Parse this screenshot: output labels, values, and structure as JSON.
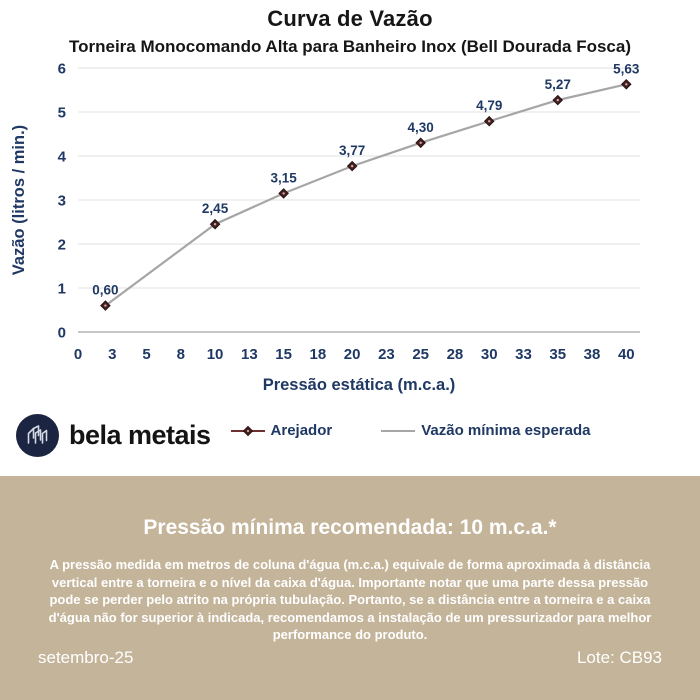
{
  "header": {
    "title": "Curva de Vazão",
    "subtitle": "Torneira Monocomando Alta para Banheiro Inox (Bell Dourada Fosca)"
  },
  "chart_data": {
    "type": "line",
    "title": "Curva de Vazão",
    "xlabel": "Pressão estática (m.c.a.)",
    "ylabel": "Vazão (litros / min.)",
    "xlim": [
      0,
      41
    ],
    "ylim": [
      0,
      6
    ],
    "x_tick_positions": [
      0,
      2.5,
      5,
      7.5,
      10,
      12.5,
      15,
      17.5,
      20,
      22.5,
      25,
      27.5,
      30,
      32.5,
      35,
      37.5,
      40
    ],
    "x_tick_labels": [
      "0",
      "3",
      "5",
      "8",
      "10",
      "13",
      "15",
      "18",
      "20",
      "23",
      "25",
      "28",
      "30",
      "33",
      "35",
      "38",
      "40"
    ],
    "y_ticks": [
      0,
      1,
      2,
      3,
      4,
      5,
      6
    ],
    "grid": true,
    "legend_position": "bottom",
    "series": [
      {
        "name": "Arejador",
        "x": [
          2,
          10,
          15,
          20,
          25,
          30,
          35,
          40
        ],
        "y": [
          0.6,
          2.45,
          3.15,
          3.77,
          4.3,
          4.79,
          5.27,
          5.63
        ],
        "point_labels": [
          "0,60",
          "2,45",
          "3,15",
          "3,77",
          "4,30",
          "4,79",
          "5,27",
          "5,63"
        ],
        "line_color": "#a6a6a6",
        "marker": "diamond",
        "marker_color": "#44201f",
        "marker_center_color": "#cfa9a9",
        "label_color": "#1f3864"
      },
      {
        "name": "Vazão mínima esperada",
        "line_color": "#a6a6a6"
      }
    ],
    "colors": {
      "axis_text": "#1f3864",
      "gridline": "#e2e2e2",
      "axis_line": "#b3b3b3",
      "legend_marker_line": "#6e3030"
    }
  },
  "logo": {
    "name": "bela metais"
  },
  "notice": {
    "heading": "Pressão mínima recomendada: 10 m.c.a.*",
    "body": "A pressão medida em metros de coluna d'água (m.c.a.) equivale de forma aproximada à distância vertical entre a torneira e o nível da caixa d'água. Importante notar que uma parte dessa pressão pode se perder pelo atrito na própria tubulação. Portanto, se a distância entre a torneira e a caixa d'água não for superior à indicada, recomendamos a instalação de um pressurizador para melhor performance do produto.",
    "date": "setembro-25",
    "lote": "Lote: CB93"
  },
  "colors": {
    "notice_background": "#c4b49a",
    "notice_text": "#ffffff",
    "navy": "#1f3864",
    "title_text": "#161616"
  }
}
